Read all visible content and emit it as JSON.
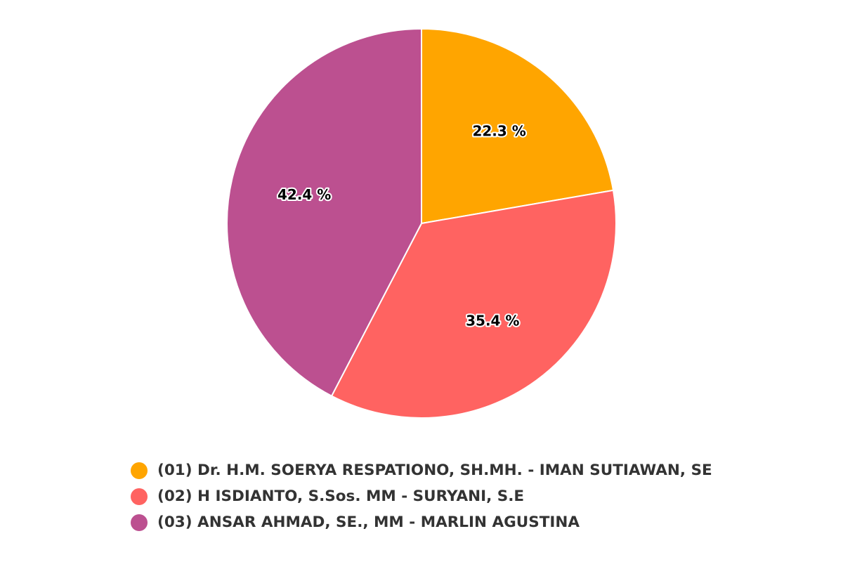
{
  "chart_data": {
    "type": "pie",
    "title": "",
    "value_suffix": " %",
    "legend_position": "bottom",
    "slices": [
      {
        "label": "(01) Dr. H.M. SOERYA RESPATIONO, SH.MH. - IMAN SUTIAWAN, SE",
        "value": 22.3,
        "color": "#FFA500"
      },
      {
        "label": "(02) H ISDIANTO, S.Sos. MM - SURYANI, S.E",
        "value": 35.4,
        "color": "#FF6361"
      },
      {
        "label": "(03) ANSAR AHMAD, SE., MM - MARLIN AGUSTINA",
        "value": 42.4,
        "color": "#BC5090"
      }
    ]
  }
}
